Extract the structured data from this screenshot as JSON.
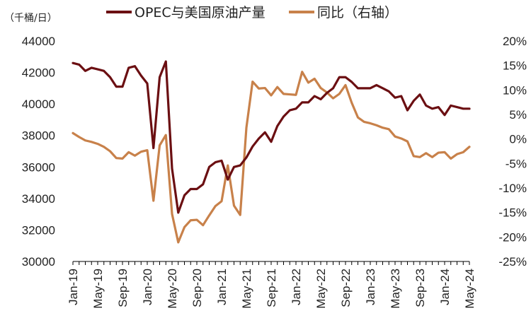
{
  "chart_data": {
    "type": "line",
    "unit_label": "（千桶/日）",
    "legend_position": "top",
    "grid": false,
    "x_ticks": [
      "Jan-19",
      "May-19",
      "Sep-19",
      "Jan-20",
      "May-20",
      "Sep-20",
      "Jan-21",
      "May-21",
      "Sep-21",
      "Jan-22",
      "May-22",
      "Sep-22",
      "Jan-23",
      "May-23",
      "Sep-23",
      "Jan-24",
      "May-24"
    ],
    "x_range": [
      "2019-01",
      "2024-05"
    ],
    "y_left": {
      "range": [
        30000,
        44000
      ],
      "ticks": [
        "30000",
        "32000",
        "34000",
        "36000",
        "38000",
        "40000",
        "42000",
        "44000"
      ]
    },
    "y_right": {
      "range": [
        -25,
        20
      ],
      "ticks": [
        "-25%",
        "-20%",
        "-15%",
        "-10%",
        "-5%",
        "0%",
        "5%",
        "10%",
        "15%",
        "20%"
      ]
    },
    "series": [
      {
        "name": "OPEC与美国原油产量",
        "axis": "left",
        "color": "#6b0f12",
        "values": [
          42600,
          42500,
          42100,
          42300,
          42200,
          42100,
          41700,
          41100,
          41100,
          42300,
          42400,
          41800,
          41300,
          37200,
          41700,
          42700,
          35900,
          33100,
          34200,
          34600,
          34600,
          34900,
          36000,
          36300,
          36400,
          35200,
          36000,
          36100,
          36600,
          37300,
          37800,
          38200,
          37600,
          38600,
          39200,
          39600,
          39700,
          40100,
          40100,
          40500,
          40300,
          40700,
          41000,
          41700,
          41700,
          41400,
          41000,
          41000,
          41000,
          41200,
          41000,
          40800,
          40400,
          40500,
          39600,
          40200,
          40600,
          39900,
          39700,
          39800,
          39300,
          39900,
          39800,
          39700,
          39700
        ]
      },
      {
        "name": "同比（右轴）",
        "axis": "right",
        "color": "#c8814a",
        "values": [
          1.2,
          0.4,
          -0.3,
          -0.6,
          -1.0,
          -1.6,
          -2.5,
          -3.9,
          -4.0,
          -2.7,
          -3.4,
          -2.6,
          -2.3,
          -12.6,
          -1.3,
          0.8,
          -15.3,
          -21.1,
          -18.0,
          -16.6,
          -16.5,
          -17.6,
          -15.6,
          -13.7,
          -12.7,
          -5.4,
          -13.6,
          -15.5,
          2.3,
          11.7,
          10.3,
          10.4,
          8.9,
          10.6,
          9.2,
          9.1,
          9.0,
          13.7,
          11.5,
          12.3,
          10.4,
          9.5,
          8.3,
          9.2,
          11.0,
          7.4,
          4.4,
          3.5,
          3.2,
          2.8,
          2.3,
          2.0,
          0.5,
          0.1,
          -0.5,
          -3.5,
          -3.7,
          -2.9,
          -3.7,
          -2.8,
          -2.7,
          -4.0,
          -3.1,
          -2.7,
          -1.6
        ]
      }
    ]
  }
}
